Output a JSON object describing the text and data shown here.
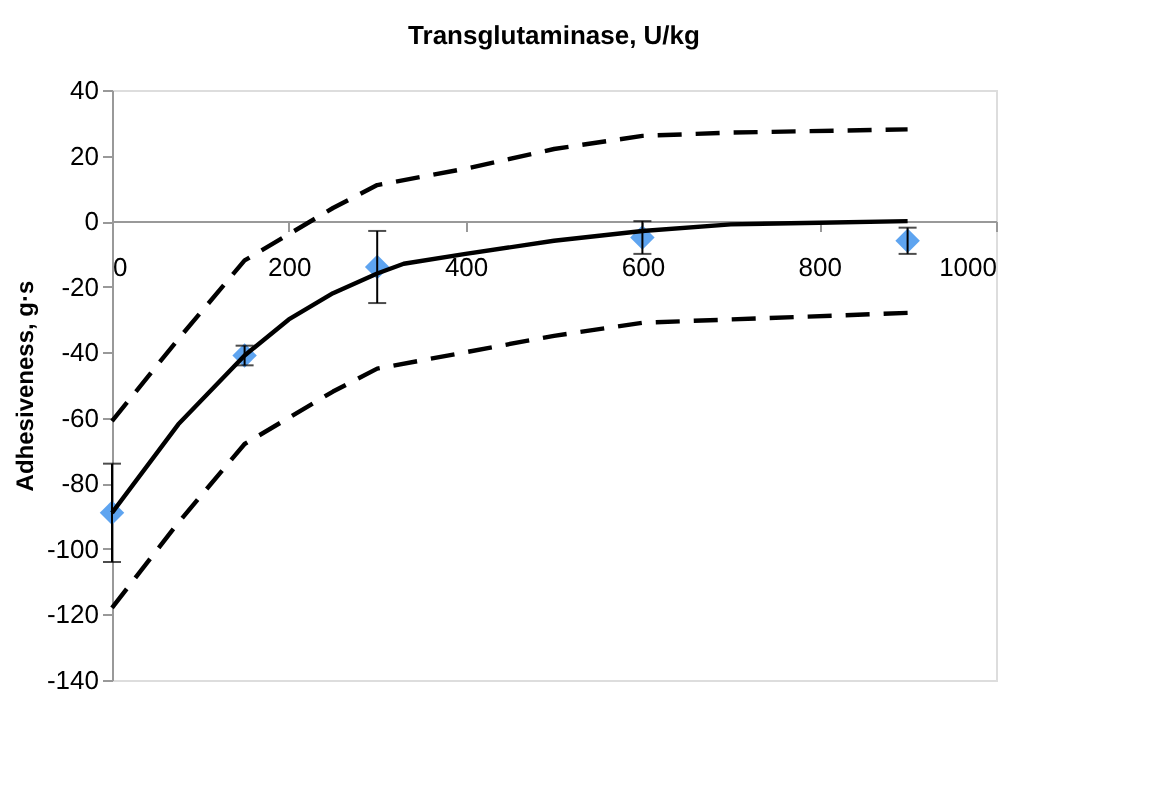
{
  "chart_data": {
    "type": "scatter",
    "xlabel": "Transglutaminase, U/kg",
    "ylabel": "Adhesiveness, g·s",
    "xlim": [
      0,
      1000
    ],
    "xticks": [
      0,
      200,
      400,
      600,
      800,
      1000
    ],
    "ylim": [
      -140,
      40
    ],
    "yticks": [
      -140,
      -120,
      -100,
      -80,
      -60,
      -40,
      -20,
      0,
      20,
      40
    ],
    "series": [
      {
        "color": "#5ea4f0",
        "marker": "diamond",
        "x": [
          0,
          150,
          300,
          600,
          900
        ],
        "values": [
          -89,
          -41,
          -14,
          -5,
          -6
        ],
        "errors": [
          15,
          3,
          11,
          5,
          4
        ]
      },
      {
        "type": "line",
        "color": "#000000",
        "line_style": "solid",
        "marker": "none",
        "x": [
          0,
          75,
          150,
          200,
          250,
          300,
          330,
          400,
          500,
          600,
          700,
          800,
          900
        ],
        "values": [
          -89,
          -62,
          -41,
          -30,
          -22,
          -16,
          -13,
          -10,
          -6,
          -3,
          -1,
          -0.5,
          0
        ]
      },
      {
        "type": "line",
        "color": "#000000",
        "line_style": "dashed",
        "marker": "none",
        "x": [
          0,
          75,
          150,
          200,
          250,
          300,
          400,
          500,
          600,
          700,
          900
        ],
        "values": [
          -61,
          -36,
          -12,
          -4,
          4,
          11,
          16,
          22,
          26,
          27,
          28
        ]
      },
      {
        "type": "line",
        "color": "#000000",
        "line_style": "dashed",
        "marker": "none",
        "x": [
          0,
          75,
          150,
          200,
          250,
          300,
          400,
          500,
          600,
          700,
          900
        ],
        "values": [
          -118,
          -92,
          -68,
          -60,
          -52,
          -45,
          -40,
          -35,
          -31,
          -30,
          -28
        ]
      }
    ]
  }
}
